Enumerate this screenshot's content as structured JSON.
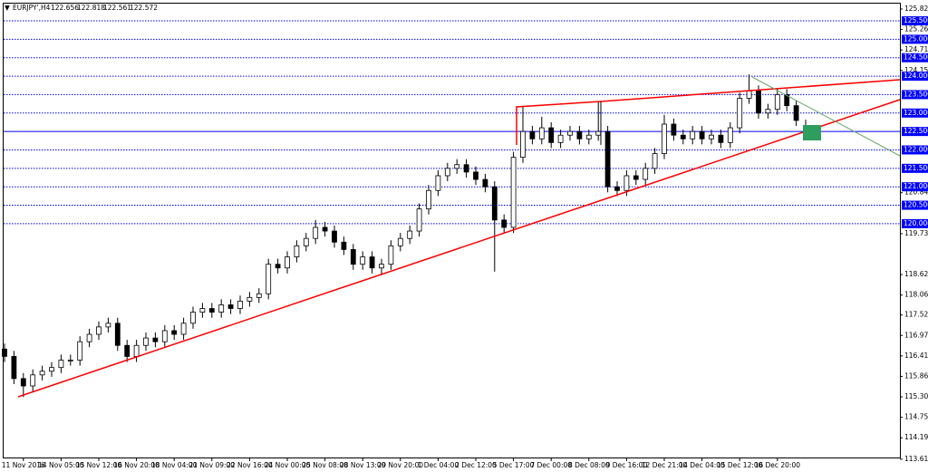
{
  "chart_data": {
    "type": "candlestick",
    "header": {
      "symbol": "EURJPY',H4",
      "open": 122.656,
      "high": 122.818,
      "low": 122.561,
      "close": 122.572
    },
    "categories": [
      null,
      null,
      "11 Nov 2016",
      null,
      null,
      null,
      "14 Nov 05:00",
      null,
      null,
      null,
      "15 Nov 12:00",
      null,
      null,
      null,
      "16 Nov 20:00",
      null,
      null,
      null,
      "18 Nov 04:00",
      null,
      null,
      null,
      "21 Nov 09:00",
      null,
      null,
      null,
      "22 Nov 16:00",
      null,
      null,
      null,
      "24 Nov 00:00",
      null,
      null,
      null,
      "25 Nov 08:00",
      null,
      null,
      null,
      "28 Nov 13:00",
      null,
      null,
      null,
      "29 Nov 20:00",
      null,
      null,
      null,
      "1 Dec 04:00",
      null,
      null,
      null,
      "2 Dec 12:00",
      null,
      null,
      null,
      "5 Dec 17:00",
      null,
      null,
      null,
      "7 Dec 00:00",
      null,
      null,
      null,
      "8 Dec 08:00",
      null,
      null,
      null,
      "9 Dec 16:00",
      null,
      null,
      null,
      "12 Dec 21:00",
      null,
      null,
      null,
      "14 Dec 04:00",
      null,
      null,
      null,
      "15 Dec 12:00",
      null,
      null,
      null,
      "16 Dec 20:00",
      null,
      null,
      null
    ],
    "open": [
      116.6,
      116.4,
      115.8,
      115.6,
      115.9,
      116.0,
      116.1,
      116.3,
      116.3,
      116.8,
      117.0,
      117.2,
      117.3,
      116.7,
      116.4,
      116.7,
      116.9,
      116.8,
      117.1,
      117.0,
      117.3,
      117.6,
      117.7,
      117.6,
      117.8,
      117.7,
      117.9,
      118.0,
      118.1,
      118.9,
      118.8,
      119.1,
      119.4,
      119.6,
      119.9,
      119.8,
      119.5,
      119.3,
      118.9,
      119.1,
      118.8,
      118.9,
      119.4,
      119.6,
      119.8,
      120.4,
      120.9,
      121.3,
      121.5,
      121.6,
      121.4,
      121.2,
      121.0,
      120.1,
      119.9,
      121.8,
      122.5,
      122.3,
      122.6,
      122.2,
      122.4,
      122.5,
      122.3,
      122.4,
      122.5,
      121.0,
      120.9,
      121.3,
      121.2,
      121.5,
      121.9,
      122.7,
      122.4,
      122.3,
      122.5,
      122.3,
      122.4,
      122.2,
      122.6,
      123.4,
      123.6,
      123.0,
      123.1,
      123.5,
      123.2,
      122.656
    ],
    "high": [
      116.75,
      116.55,
      115.95,
      116.05,
      116.15,
      116.25,
      116.45,
      116.45,
      116.95,
      117.15,
      117.35,
      117.45,
      117.45,
      116.85,
      116.85,
      117.05,
      117.05,
      117.25,
      117.25,
      117.45,
      117.75,
      117.85,
      117.85,
      117.95,
      117.95,
      118.05,
      118.15,
      118.25,
      119.05,
      119.05,
      119.25,
      119.55,
      119.75,
      120.1,
      120.05,
      119.95,
      119.65,
      119.45,
      119.25,
      119.25,
      119.05,
      119.55,
      119.75,
      119.95,
      120.55,
      121.05,
      121.45,
      121.65,
      121.75,
      121.75,
      121.55,
      121.35,
      121.15,
      120.25,
      121.95,
      123.2,
      122.65,
      122.9,
      122.75,
      122.55,
      122.65,
      122.65,
      122.55,
      123.3,
      122.65,
      121.15,
      121.45,
      121.45,
      121.65,
      122.05,
      122.95,
      122.85,
      122.55,
      122.65,
      122.65,
      122.55,
      122.55,
      122.75,
      123.55,
      124.05,
      123.75,
      123.25,
      123.65,
      123.65,
      123.35,
      122.818
    ],
    "low": [
      116.25,
      115.65,
      115.3,
      115.45,
      115.75,
      115.85,
      115.95,
      116.15,
      116.15,
      116.65,
      116.85,
      117.05,
      116.55,
      116.25,
      116.25,
      116.55,
      116.65,
      116.65,
      116.85,
      116.85,
      117.15,
      117.45,
      117.45,
      117.45,
      117.55,
      117.55,
      117.75,
      117.85,
      117.95,
      118.65,
      118.65,
      118.95,
      119.25,
      119.45,
      119.65,
      119.35,
      119.15,
      118.75,
      118.75,
      118.65,
      118.6,
      118.75,
      119.25,
      119.45,
      119.65,
      120.25,
      120.75,
      121.15,
      121.35,
      121.25,
      121.05,
      120.85,
      118.7,
      119.75,
      119.75,
      121.65,
      122.15,
      122.15,
      122.05,
      122.05,
      122.25,
      122.15,
      122.15,
      122.25,
      120.85,
      120.75,
      120.75,
      121.05,
      121.05,
      121.35,
      121.75,
      122.25,
      122.15,
      122.15,
      122.15,
      122.15,
      122.05,
      122.05,
      122.45,
      123.25,
      122.85,
      122.85,
      122.95,
      123.05,
      122.65,
      122.561
    ],
    "close": [
      116.4,
      115.8,
      115.6,
      115.9,
      116.0,
      116.1,
      116.3,
      116.3,
      116.8,
      117.0,
      117.2,
      117.3,
      116.7,
      116.4,
      116.7,
      116.9,
      116.8,
      117.1,
      117.0,
      117.3,
      117.6,
      117.7,
      117.6,
      117.8,
      117.7,
      117.9,
      118.0,
      118.1,
      118.9,
      118.8,
      119.1,
      119.4,
      119.6,
      119.9,
      119.8,
      119.5,
      119.3,
      118.9,
      119.1,
      118.8,
      118.9,
      119.4,
      119.6,
      119.8,
      120.4,
      120.9,
      121.3,
      121.5,
      121.6,
      121.4,
      121.2,
      121.0,
      120.1,
      119.9,
      121.8,
      122.5,
      122.3,
      122.6,
      122.2,
      122.4,
      122.5,
      122.3,
      122.4,
      122.5,
      121.0,
      120.9,
      121.3,
      121.2,
      121.5,
      121.9,
      122.7,
      122.4,
      122.3,
      122.5,
      122.3,
      122.4,
      122.2,
      122.6,
      123.4,
      123.6,
      123.0,
      123.1,
      123.5,
      123.2,
      122.8,
      122.572
    ],
    "ylim": [
      113.66,
      126.065
    ],
    "yticks": [
      {
        "value": 125.82,
        "label": "125.820"
      },
      {
        "value": 125.265,
        "label": "125.265"
      },
      {
        "value": 124.71,
        "label": "124.710"
      },
      {
        "value": 124.155,
        "label": "124.155"
      },
      {
        "value": 120.84,
        "label": "120.840"
      },
      {
        "value": 119.73,
        "label": "119.730"
      },
      {
        "value": 118.62,
        "label": "118.620"
      },
      {
        "value": 118.065,
        "label": "118.065"
      },
      {
        "value": 117.525,
        "label": "117.525"
      },
      {
        "value": 116.97,
        "label": "116.970"
      },
      {
        "value": 116.415,
        "label": "116.415"
      },
      {
        "value": 115.86,
        "label": "115.860"
      },
      {
        "value": 115.305,
        "label": "115.305"
      },
      {
        "value": 114.75,
        "label": "114.750"
      },
      {
        "value": 114.195,
        "label": "114.195"
      },
      {
        "value": 113.615,
        "label": "113.615"
      }
    ],
    "levels": [
      {
        "value": 125.5,
        "label": "125.500"
      },
      {
        "value": 125,
        "label": "125.000"
      },
      {
        "value": 124.5,
        "label": "124.500"
      },
      {
        "value": 124,
        "label": "124.000"
      },
      {
        "value": 123.5,
        "label": "123.500"
      },
      {
        "value": 123,
        "label": "123.000"
      },
      {
        "value": 122.5,
        "label": "122.500"
      },
      {
        "value": 122,
        "label": "122.000"
      },
      {
        "value": 121.5,
        "label": "121.500"
      },
      {
        "value": 121,
        "label": "121.000"
      },
      {
        "value": 120.5,
        "label": "120.500"
      },
      {
        "value": 120,
        "label": "120.000"
      }
    ],
    "level_color": "#0000ff",
    "up_color": "#ffffff",
    "down_color": "#000000"
  }
}
